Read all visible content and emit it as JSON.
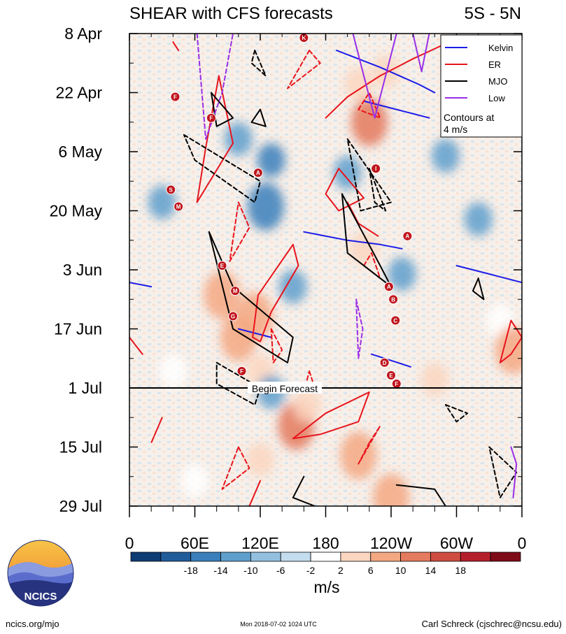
{
  "chart_data": {
    "type": "heatmap",
    "title": "SHEAR with CFS forecasts",
    "subtitle": "5S - 5N",
    "y_ticks": [
      "8 Apr",
      "22 Apr",
      "6 May",
      "20 May",
      "3 Jun",
      "17 Jun",
      "1 Jul",
      "15 Jul",
      "29 Jul"
    ],
    "x_ticks": [
      "0",
      "60E",
      "120E",
      "180",
      "120W",
      "60W",
      "0"
    ],
    "xlim_deg_east": [
      0,
      360
    ],
    "ylim_days_after_8_apr": [
      0,
      112
    ],
    "grid": false,
    "forecast_line": {
      "label": "Begin Forecast",
      "date": "1 Jul"
    },
    "legend": {
      "placement": "top-right",
      "entries": [
        {
          "name": "Kelvin",
          "color": "#1c1ce8"
        },
        {
          "name": "ER",
          "color": "#e8141c"
        },
        {
          "name": "MJO",
          "color": "#000000"
        },
        {
          "name": "Low",
          "color": "#9a2ee6"
        }
      ],
      "note_line1": "Contours at",
      "note_line2": "4 m/s"
    },
    "colorbar": {
      "label": "m/s",
      "ticks": [
        "-18",
        "-14",
        "-10",
        "-6",
        "-2",
        "2",
        "6",
        "10",
        "14",
        "18"
      ],
      "colors": [
        "#0d3b73",
        "#215c9a",
        "#3a7fbb",
        "#5f9fcd",
        "#93c0df",
        "#c3dcee",
        "#ffffff",
        "#fbd6c0",
        "#f4a882",
        "#e47a5e",
        "#cf4c40",
        "#b51f2a",
        "#7e0a18"
      ]
    },
    "anomalies": [
      {
        "lon": 125,
        "day": 41,
        "value": -12
      },
      {
        "lon": 100,
        "day": 25,
        "value": -9
      },
      {
        "lon": 130,
        "day": 30,
        "value": -10
      },
      {
        "lon": 85,
        "day": 62,
        "value": 12
      },
      {
        "lon": 115,
        "day": 67,
        "value": 13
      },
      {
        "lon": 100,
        "day": 72,
        "value": 12
      },
      {
        "lon": 120,
        "day": 80,
        "value": 10
      },
      {
        "lon": 130,
        "day": 85,
        "value": -9
      },
      {
        "lon": 153,
        "day": 93,
        "value": 17
      },
      {
        "lon": 163,
        "day": 88,
        "value": 8
      },
      {
        "lon": 210,
        "day": 100,
        "value": 11
      },
      {
        "lon": 240,
        "day": 110,
        "value": 14
      },
      {
        "lon": 210,
        "day": 12,
        "value": 9
      },
      {
        "lon": 220,
        "day": 21,
        "value": 15
      },
      {
        "lon": 200,
        "day": 33,
        "value": -8
      },
      {
        "lon": 215,
        "day": 51,
        "value": 10
      },
      {
        "lon": 235,
        "day": 9,
        "value": 8
      },
      {
        "lon": 250,
        "day": 57,
        "value": -7
      },
      {
        "lon": 290,
        "day": 29,
        "value": -8
      },
      {
        "lon": 280,
        "day": 82,
        "value": 7
      },
      {
        "lon": 340,
        "day": 68,
        "value": 6
      },
      {
        "lon": 352,
        "day": 75,
        "value": 12
      },
      {
        "lon": 60,
        "day": 106,
        "value": 6
      },
      {
        "lon": 120,
        "day": 101,
        "value": 7
      },
      {
        "lon": 40,
        "day": 80,
        "value": 6
      },
      {
        "lon": 150,
        "day": 60,
        "value": -6
      },
      {
        "lon": 320,
        "day": 44,
        "value": -7
      },
      {
        "lon": 30,
        "day": 40,
        "value": -6
      }
    ],
    "series": [
      {
        "name": "Kelvin",
        "color": "#1c1ce8",
        "dash": false,
        "paths": [
          [
            [
              190,
              4
            ],
            [
              230,
              8
            ],
            [
              265,
              12
            ],
            [
              280,
              14
            ]
          ],
          [
            [
              215,
              16
            ],
            [
              245,
              18
            ],
            [
              275,
              20
            ]
          ],
          [
            [
              160,
              47
            ],
            [
              200,
              49
            ],
            [
              230,
              50
            ],
            [
              250,
              51
            ]
          ],
          [
            [
              300,
              55
            ],
            [
              330,
              57
            ],
            [
              360,
              59
            ]
          ],
          [
            [
              0,
              59
            ],
            [
              20,
              60
            ]
          ],
          [
            [
              100,
              70
            ],
            [
              130,
              72
            ]
          ],
          [
            [
              222,
              76
            ],
            [
              258,
              79
            ]
          ]
        ]
      },
      {
        "name": "ER",
        "color": "#e8141c",
        "dash": false,
        "paths": [
          [
            [
              180,
              20
            ],
            [
              200,
              15
            ],
            [
              230,
              10
            ],
            [
              260,
              6
            ],
            [
              285,
              3
            ]
          ],
          [
            [
              82,
              10
            ],
            [
              95,
              26
            ],
            [
              62,
              40
            ],
            [
              70,
              27
            ],
            [
              82,
              10
            ]
          ],
          [
            [
              192,
              32
            ],
            [
              215,
              39
            ],
            [
              192,
              42
            ],
            [
              180,
              38
            ],
            [
              192,
              32
            ]
          ],
          [
            [
              200,
              40
            ],
            [
              210,
              45
            ],
            [
              228,
              48
            ]
          ],
          [
            [
              150,
              50
            ],
            [
              155,
              55
            ],
            [
              130,
              66
            ],
            [
              120,
              73
            ],
            [
              113,
              72
            ],
            [
              118,
              62
            ],
            [
              150,
              50
            ]
          ],
          [
            [
              0,
              72
            ],
            [
              12,
              76
            ]
          ],
          [
            [
              350,
              68
            ],
            [
              360,
              72
            ],
            [
              350,
              76
            ],
            [
              340,
              78
            ],
            [
              350,
              68
            ]
          ],
          [
            [
              150,
              96
            ],
            [
              180,
              90
            ],
            [
              220,
              85
            ],
            [
              210,
              92
            ],
            [
              175,
              95
            ],
            [
              150,
              96
            ]
          ],
          [
            [
              110,
              112
            ],
            [
              120,
              106
            ]
          ],
          [
            [
              40,
              2
            ],
            [
              45,
              4
            ]
          ]
        ]
      },
      {
        "name": "ER-forecast",
        "color": "#e8141c",
        "dash": true,
        "paths": [
          [
            [
              165,
              4
            ],
            [
              175,
              7
            ],
            [
              145,
              13
            ],
            [
              165,
              4
            ]
          ],
          [
            [
              210,
              18
            ],
            [
              220,
              14
            ],
            [
              230,
              20
            ],
            [
              210,
              18
            ]
          ],
          [
            [
              100,
              40
            ],
            [
              110,
              46
            ],
            [
              92,
              54
            ],
            [
              100,
              40
            ]
          ],
          [
            [
              215,
              55
            ],
            [
              222,
              52
            ],
            [
              230,
              58
            ],
            [
              215,
              55
            ]
          ],
          [
            [
              130,
              70
            ],
            [
              140,
              75
            ],
            [
              132,
              78
            ],
            [
              130,
              70
            ]
          ],
          [
            [
              165,
              80
            ],
            [
              170,
              84
            ],
            [
              160,
              85
            ],
            [
              165,
              80
            ]
          ],
          [
            [
              25,
              94
            ],
            [
              30,
              91
            ],
            [
              20,
              97
            ],
            [
              25,
              94
            ]
          ],
          [
            [
              100,
              98
            ],
            [
              110,
              103
            ],
            [
              85,
              108
            ],
            [
              100,
              98
            ]
          ],
          [
            [
              220,
              97
            ],
            [
              230,
              93
            ],
            [
              210,
              102
            ],
            [
              220,
              97
            ]
          ]
        ]
      },
      {
        "name": "MJO",
        "color": "#000000",
        "dash": false,
        "paths": [
          [
            [
              73,
              47
            ],
            [
              95,
              60
            ],
            [
              150,
              72
            ],
            [
              145,
              78
            ],
            [
              95,
              70
            ],
            [
              73,
              47
            ]
          ],
          [
            [
              195,
              38
            ],
            [
              230,
              55
            ],
            [
              240,
              60
            ],
            [
              200,
              52
            ],
            [
              195,
              38
            ]
          ],
          [
            [
              75,
              14
            ],
            [
              95,
              20
            ],
            [
              80,
              22
            ],
            [
              75,
              14
            ]
          ],
          [
            [
              120,
              18
            ],
            [
              125,
              22
            ],
            [
              112,
              21
            ],
            [
              120,
              18
            ]
          ],
          [
            [
              320,
              58
            ],
            [
              325,
              63
            ],
            [
              315,
              61
            ],
            [
              320,
              58
            ]
          ],
          [
            [
              160,
              105
            ],
            [
              150,
              110
            ],
            [
              170,
              112
            ]
          ],
          [
            [
              245,
              107
            ],
            [
              280,
              108
            ],
            [
              290,
              112
            ]
          ]
        ]
      },
      {
        "name": "MJO-forecast",
        "color": "#000000",
        "dash": true,
        "paths": [
          [
            [
              115,
              4
            ],
            [
              125,
              10
            ],
            [
              112,
              7
            ],
            [
              115,
              4
            ]
          ],
          [
            [
              50,
              24
            ],
            [
              120,
              35
            ],
            [
              115,
              40
            ],
            [
              60,
              30
            ],
            [
              50,
              24
            ]
          ],
          [
            [
              200,
              25
            ],
            [
              240,
              40
            ],
            [
              212,
              42
            ],
            [
              200,
              25
            ]
          ],
          [
            [
              220,
              32
            ],
            [
              235,
              42
            ],
            [
              225,
              40
            ],
            [
              220,
              32
            ]
          ],
          [
            [
              80,
              78
            ],
            [
              120,
              84
            ],
            [
              115,
              88
            ],
            [
              80,
              83
            ],
            [
              80,
              78
            ]
          ],
          [
            [
              290,
              88
            ],
            [
              310,
              90
            ],
            [
              300,
              92
            ],
            [
              290,
              88
            ]
          ],
          [
            [
              330,
              98
            ],
            [
              355,
              104
            ],
            [
              340,
              110
            ],
            [
              330,
              98
            ]
          ]
        ]
      },
      {
        "name": "Low",
        "color": "#9a2ee6",
        "dash": false,
        "paths": [
          [
            [
              205,
              0
            ],
            [
              215,
              10
            ],
            [
              225,
              20
            ],
            [
              245,
              0
            ]
          ],
          [
            [
              260,
              0
            ],
            [
              268,
              9
            ],
            [
              275,
              0
            ]
          ],
          [
            [
              350,
              98
            ],
            [
              355,
              102
            ],
            [
              352,
              110
            ]
          ]
        ]
      },
      {
        "name": "Low-forecast",
        "color": "#9a2ee6",
        "dash": true,
        "paths": [
          [
            [
              62,
              0
            ],
            [
              70,
              25
            ],
            [
              85,
              14
            ],
            [
              95,
              0
            ]
          ],
          [
            [
              208,
              63
            ],
            [
              214,
              70
            ],
            [
              210,
              77
            ],
            [
              208,
              63
            ]
          ]
        ]
      }
    ],
    "storms": [
      {
        "letter": "F",
        "lon": 42,
        "day": 15
      },
      {
        "letter": "F",
        "lon": 75,
        "day": 20
      },
      {
        "letter": "S",
        "lon": 38,
        "day": 37
      },
      {
        "letter": "M",
        "lon": 45,
        "day": 41
      },
      {
        "letter": "A",
        "lon": 118,
        "day": 33
      },
      {
        "letter": "E",
        "lon": 85,
        "day": 55
      },
      {
        "letter": "M",
        "lon": 97,
        "day": 61
      },
      {
        "letter": "G",
        "lon": 95,
        "day": 67
      },
      {
        "letter": "F",
        "lon": 103,
        "day": 80
      },
      {
        "letter": "I",
        "lon": 226,
        "day": 32
      },
      {
        "letter": "A",
        "lon": 255,
        "day": 48
      },
      {
        "letter": "A",
        "lon": 238,
        "day": 60
      },
      {
        "letter": "B",
        "lon": 242,
        "day": 63
      },
      {
        "letter": "C",
        "lon": 244,
        "day": 68
      },
      {
        "letter": "D",
        "lon": 234,
        "day": 78
      },
      {
        "letter": "E",
        "lon": 240,
        "day": 81
      },
      {
        "letter": "F",
        "lon": 245,
        "day": 83
      },
      {
        "letter": "K",
        "lon": 160,
        "day": 1
      }
    ]
  },
  "footer": {
    "website": "ncics.org/mjo",
    "timestamp": "Mon 2018-07-02 1024 UTC",
    "author": "Carl Schreck (cjschrec@ncsu.edu)",
    "logo_text": "NCICS"
  }
}
